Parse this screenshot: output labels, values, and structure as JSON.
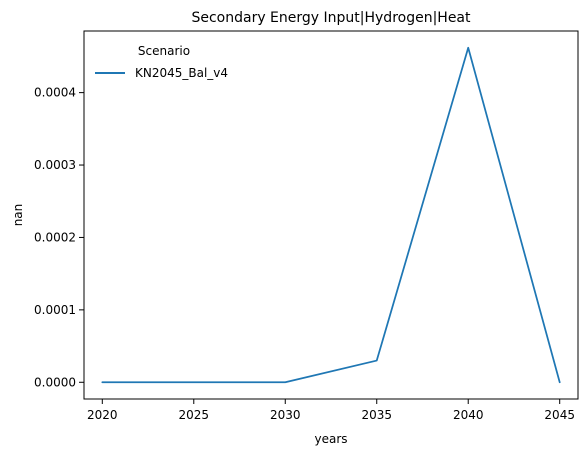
{
  "chart_data": {
    "type": "line",
    "title": "Secondary Energy Input|Hydrogen|Heat",
    "xlabel": "years",
    "ylabel": "nan",
    "x": [
      2020,
      2030,
      2035,
      2040,
      2045
    ],
    "xlim": [
      2019,
      2046
    ],
    "ylim": [
      -2.31e-05,
      0.0004851
    ],
    "x_ticks": [
      2020,
      2025,
      2030,
      2035,
      2040,
      2045
    ],
    "x_tick_labels": [
      "2020",
      "2025",
      "2030",
      "2035",
      "2040",
      "2045"
    ],
    "y_ticks": [
      0,
      0.0001,
      0.0002,
      0.0003,
      0.0004
    ],
    "y_tick_labels": [
      "0.0000",
      "0.0001",
      "0.0002",
      "0.0003",
      "0.0004"
    ],
    "grid": false,
    "legend": {
      "title": "Scenario",
      "placement": "top-left"
    },
    "series": [
      {
        "name": "KN2045_Bal_v4",
        "color": "#1f77b4",
        "values": [
          0,
          0,
          3e-05,
          0.000462,
          0
        ]
      }
    ]
  }
}
